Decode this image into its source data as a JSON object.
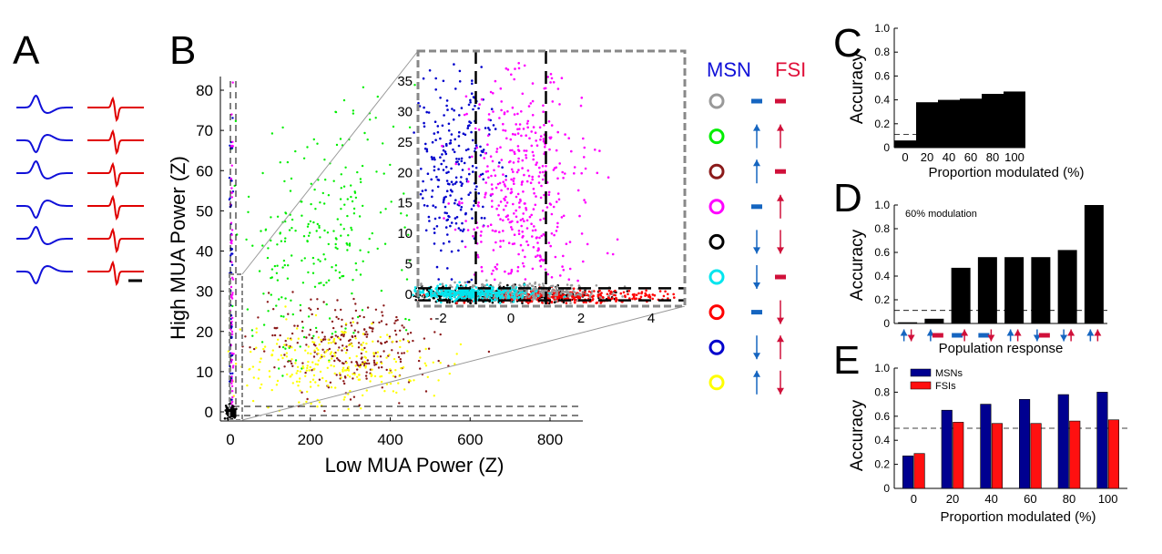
{
  "panels": {
    "A": "A",
    "B": "B",
    "C": "C",
    "D": "D",
    "E": "E"
  },
  "colors": {
    "msn": "#1010d8",
    "fsi": "#e00000",
    "arrow_msn": "#1565c0",
    "arrow_fsi": "#d0103a",
    "bar_black": "#000000",
    "bar_blue": "#000090",
    "bar_red": "#ff1010"
  },
  "panelA": {
    "waveform_rows": 6
  },
  "panelB": {
    "xlabel": "Low MUA Power (Z)",
    "ylabel": "High MUA Power (Z)",
    "xticks": [
      "0",
      "200",
      "400",
      "600",
      "800"
    ],
    "yticks": [
      "0",
      "10",
      "20",
      "30",
      "40",
      "50",
      "60",
      "70",
      "80"
    ],
    "inset_xticks": [
      "-2",
      "0",
      "2",
      "4"
    ],
    "inset_yticks": [
      "0",
      "5",
      "10",
      "15",
      "20",
      "25",
      "30",
      "35"
    ]
  },
  "legend": {
    "msn_label": "MSN",
    "fsi_label": "FSI",
    "rows": [
      {
        "circle": "#999999",
        "msn": "none",
        "fsi": "none"
      },
      {
        "circle": "#00ee00",
        "msn": "up",
        "fsi": "up"
      },
      {
        "circle": "#8b1a1a",
        "msn": "up",
        "fsi": "none"
      },
      {
        "circle": "#ff00ff",
        "msn": "none",
        "fsi": "up"
      },
      {
        "circle": "#000000",
        "msn": "down",
        "fsi": "down"
      },
      {
        "circle": "#00e5ee",
        "msn": "down",
        "fsi": "none"
      },
      {
        "circle": "#ff0000",
        "msn": "none",
        "fsi": "down"
      },
      {
        "circle": "#0000cc",
        "msn": "down",
        "fsi": "up"
      },
      {
        "circle": "#ffff00",
        "msn": "up",
        "fsi": "down"
      }
    ]
  },
  "chart_data": [
    {
      "panel": "B",
      "type": "scatter",
      "xlabel": "Low MUA Power (Z)",
      "ylabel": "High MUA Power (Z)",
      "xlim": [
        -20,
        870
      ],
      "ylim": [
        -3,
        83
      ],
      "chance_lines_y": [
        -1,
        1
      ],
      "series": [
        {
          "color": "#00ee00",
          "center": [
            230,
            38
          ],
          "spread": [
            120,
            16
          ]
        },
        {
          "color": "#8b1a1a",
          "center": [
            300,
            16
          ],
          "spread": [
            110,
            6
          ]
        },
        {
          "color": "#ffff00",
          "center": [
            250,
            12
          ],
          "spread": [
            120,
            5
          ]
        },
        {
          "color": "#0000cc",
          "center": [
            2,
            28
          ],
          "spread": [
            2,
            25
          ]
        },
        {
          "color": "#ff00ff",
          "center": [
            4,
            30
          ],
          "spread": [
            2,
            25
          ]
        }
      ],
      "inset": {
        "xlim": [
          -2.8,
          4.8
        ],
        "ylim": [
          -1.5,
          38
        ],
        "vlines_x": [
          -1,
          1
        ],
        "hlines_y": [
          -1,
          1
        ],
        "series": [
          {
            "color": "#0000cc",
            "center": [
              -1.6,
              22
            ],
            "spread": [
              0.5,
              9
            ]
          },
          {
            "color": "#ff00ff",
            "center": [
              0.4,
              18
            ],
            "spread": [
              0.9,
              9
            ]
          },
          {
            "color": "#000000",
            "center": [
              -0.5,
              -0.3
            ],
            "spread": [
              1.5,
              0.7
            ]
          },
          {
            "color": "#ff0000",
            "center": [
              1.2,
              -0.4
            ],
            "spread": [
              1.4,
              0.6
            ]
          },
          {
            "color": "#999999",
            "center": [
              0,
              0.3
            ],
            "spread": [
              1.2,
              0.7
            ]
          },
          {
            "color": "#00e5ee",
            "center": [
              -1.2,
              0.2
            ],
            "spread": [
              0.8,
              0.6
            ]
          }
        ]
      }
    },
    {
      "panel": "C",
      "type": "bar",
      "categories": [
        "0",
        "20",
        "40",
        "60",
        "80",
        "100"
      ],
      "values": [
        0.06,
        0.38,
        0.4,
        0.41,
        0.45,
        0.47
      ],
      "xlabel": "Proportion modulated (%)",
      "ylabel": "Accuracy",
      "ylim": [
        0,
        1.0
      ],
      "yticks": [
        "0",
        "0.2",
        "0.4",
        "0.6",
        "0.8",
        "1.0"
      ],
      "chance": 0.11
    },
    {
      "panel": "D",
      "type": "bar",
      "annotation": "60% modulation",
      "values": [
        0.01,
        0.04,
        0.47,
        0.56,
        0.56,
        0.56,
        0.62,
        1.0
      ],
      "xlabel": "Population response",
      "ylabel": "Accuracy",
      "ylim": [
        0,
        1.0
      ],
      "yticks": [
        "0",
        "0.2",
        "0.4",
        "0.6",
        "0.8",
        "1.0"
      ],
      "chance": 0.11,
      "category_arrows": [
        [
          "up",
          "down"
        ],
        [
          "up",
          "none"
        ],
        [
          "none",
          "up"
        ],
        [
          "none",
          "down"
        ],
        [
          "up",
          "up"
        ],
        [
          "down",
          "none"
        ],
        [
          "down",
          "up"
        ],
        [
          "up",
          "up"
        ]
      ]
    },
    {
      "panel": "E",
      "type": "bar",
      "categories": [
        "0",
        "20",
        "40",
        "60",
        "80",
        "100"
      ],
      "series": [
        {
          "name": "MSNs",
          "values": [
            0.27,
            0.65,
            0.7,
            0.74,
            0.78,
            0.8
          ]
        },
        {
          "name": "FSIs",
          "values": [
            0.29,
            0.55,
            0.54,
            0.54,
            0.56,
            0.57
          ]
        }
      ],
      "xlabel": "Proportion modulated (%)",
      "ylabel": "Accuracy",
      "ylim": [
        0,
        1.0
      ],
      "yticks": [
        "0",
        "0.2",
        "0.4",
        "0.6",
        "0.8",
        "1.0"
      ],
      "chance": 0.5,
      "legend_placement": "top-left"
    }
  ]
}
